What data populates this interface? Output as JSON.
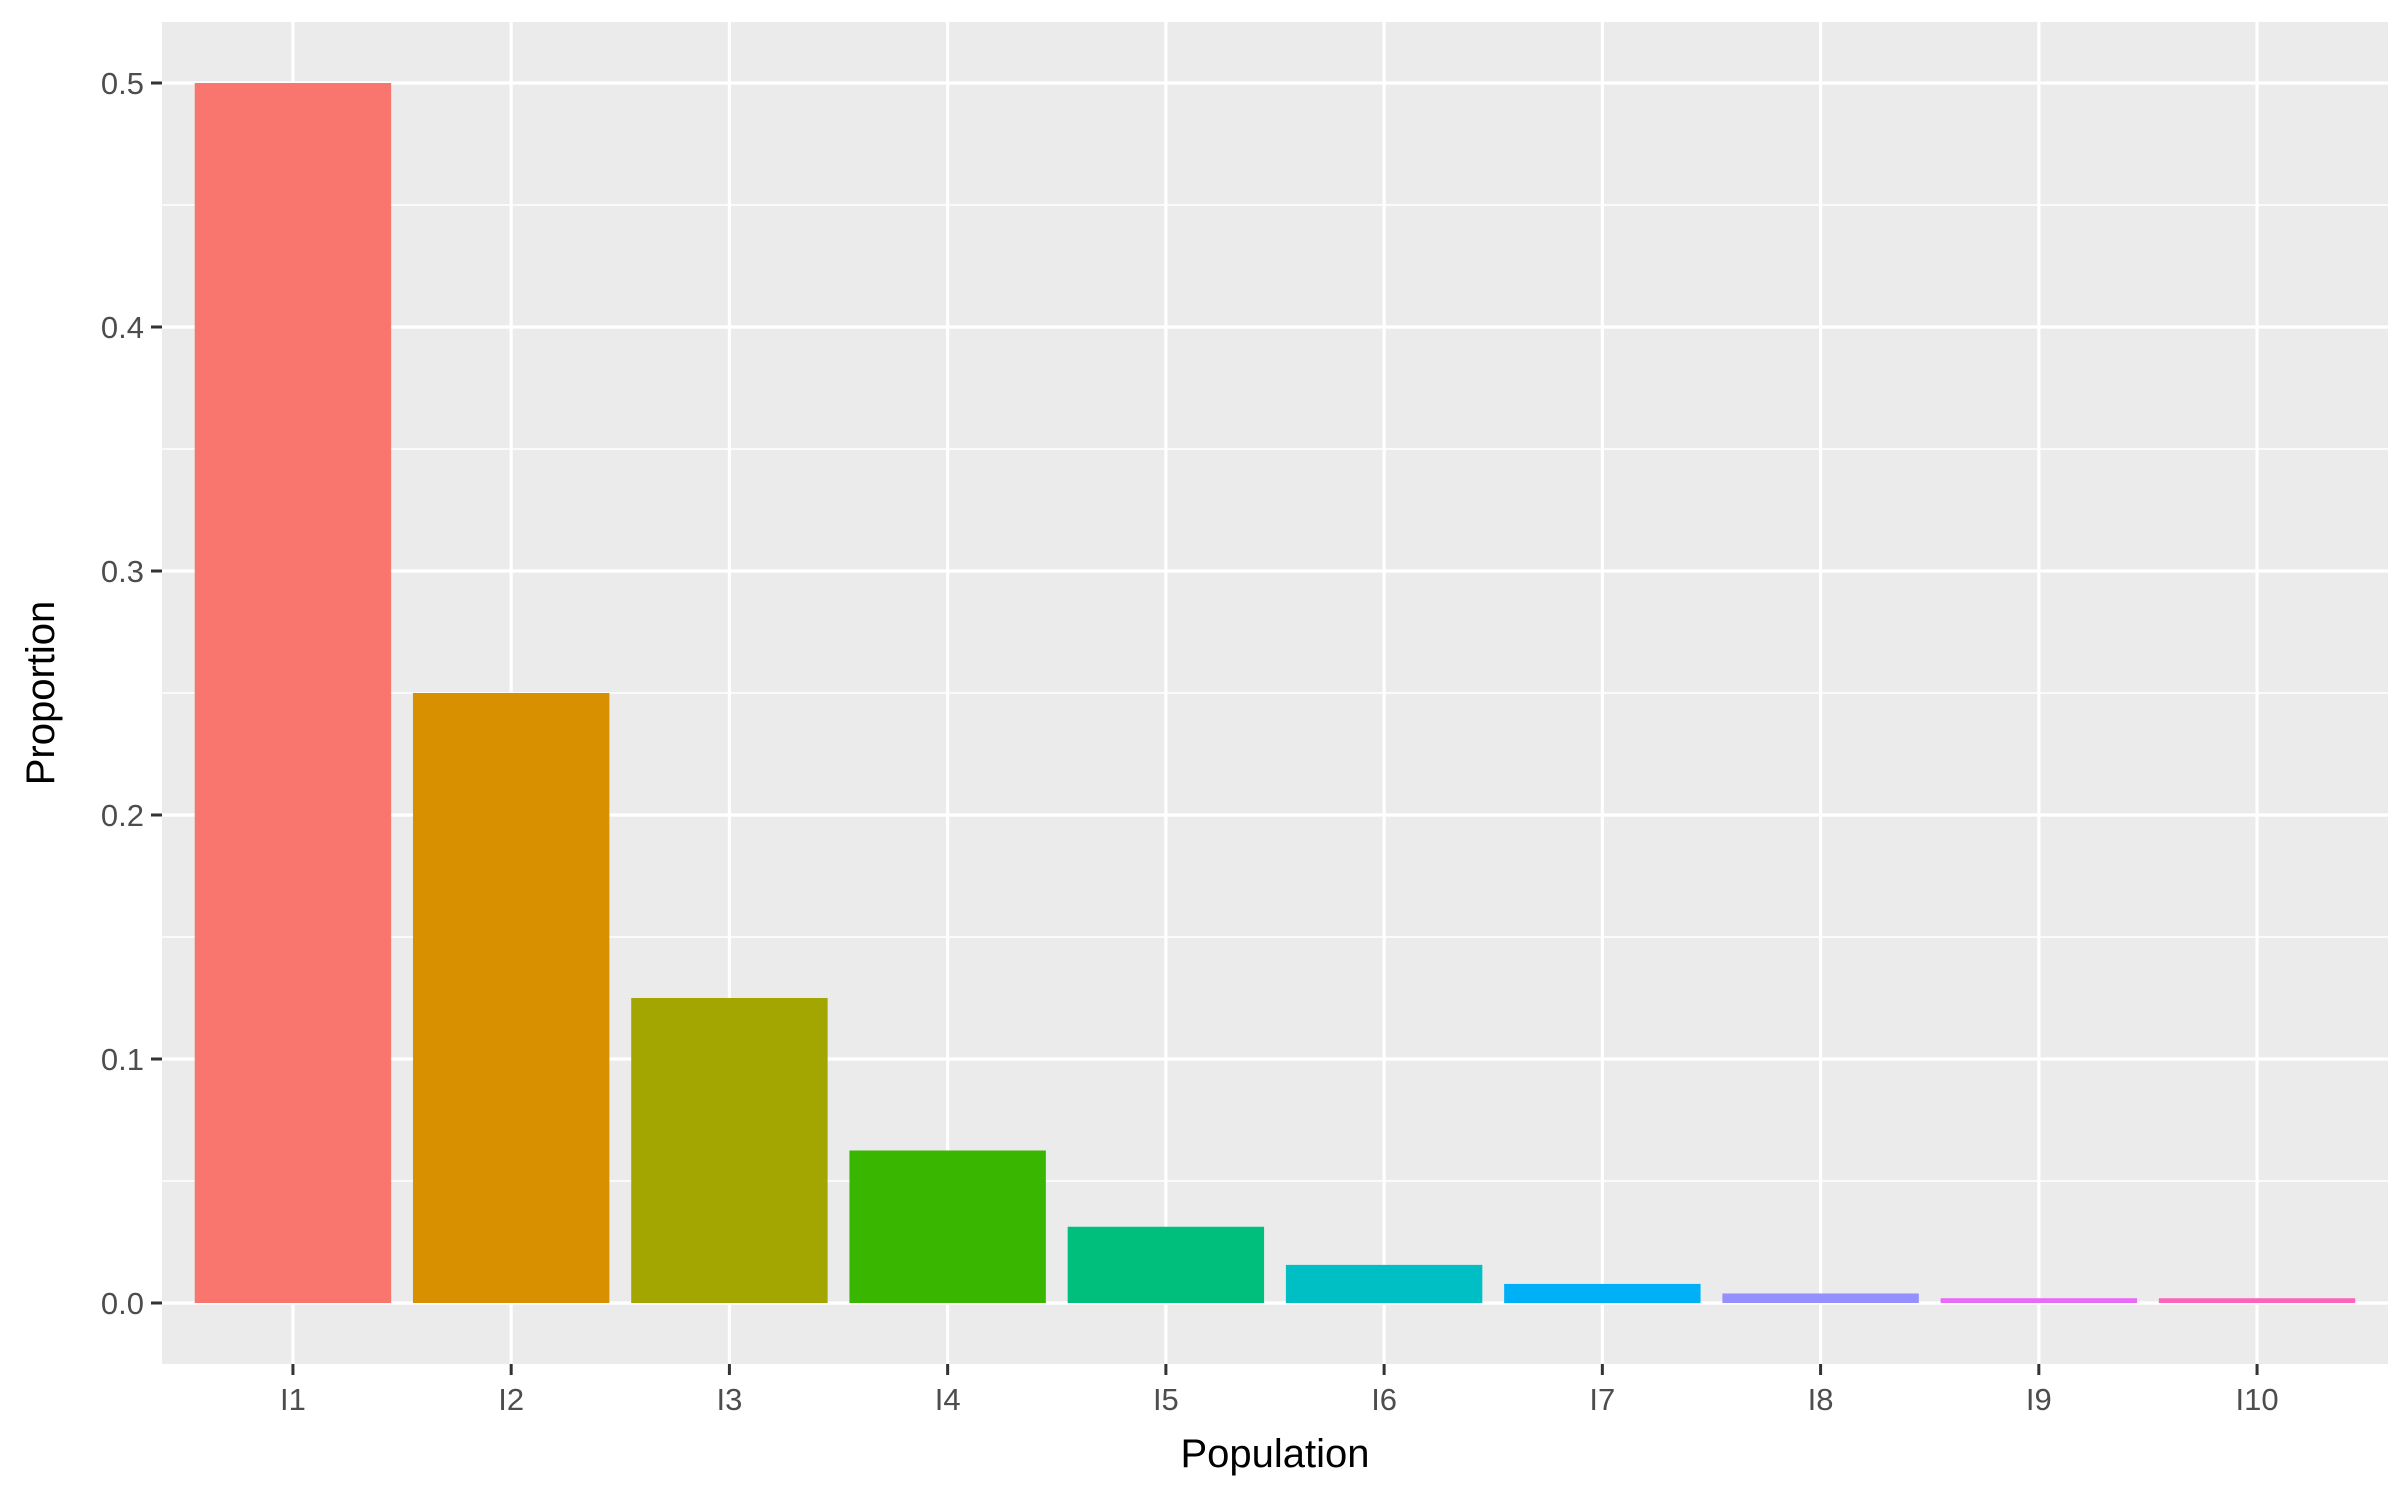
{
  "chart_data": {
    "type": "bar",
    "xlabel": "Population",
    "ylabel": "Proportion",
    "categories": [
      "I1",
      "I2",
      "I3",
      "I4",
      "I5",
      "I6",
      "I7",
      "I8",
      "I9",
      "I10"
    ],
    "values": [
      0.5,
      0.25,
      0.125,
      0.0625,
      0.03125,
      0.015625,
      0.0078125,
      0.00390625,
      0.001953125,
      0.001953125
    ],
    "colors": [
      "#F8766D",
      "#D89000",
      "#A3A500",
      "#39B600",
      "#00BF7D",
      "#00BFC4",
      "#00B0F6",
      "#9590FF",
      "#E76BF3",
      "#FF62BC"
    ],
    "ylim": [
      -0.025,
      0.525
    ],
    "yticks": [
      0.0,
      0.1,
      0.2,
      0.3,
      0.4,
      0.5
    ],
    "ytick_labels": [
      "0.0",
      "0.1",
      "0.2",
      "0.3",
      "0.4",
      "0.5"
    ],
    "grid": true,
    "legend": false,
    "panel_background": "#EBEBEB",
    "grid_color": "#FFFFFF"
  }
}
